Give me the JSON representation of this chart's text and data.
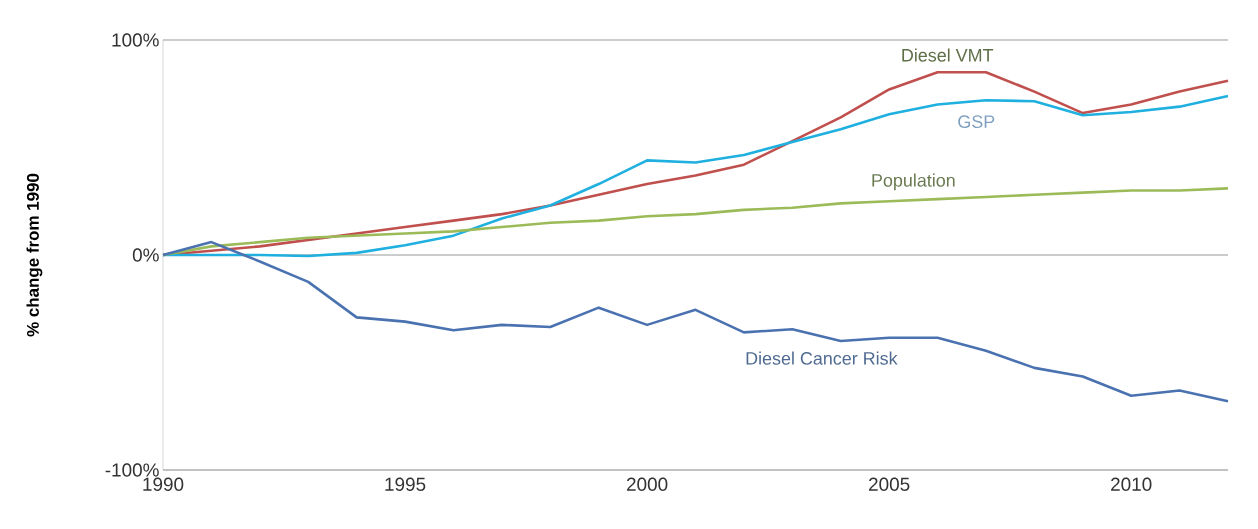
{
  "chart_data": {
    "type": "line",
    "ylabel": "% change from 1990",
    "x": [
      1990,
      1991,
      1992,
      1993,
      1994,
      1995,
      1996,
      1997,
      1998,
      1999,
      2000,
      2001,
      2002,
      2003,
      2004,
      2005,
      2006,
      2007,
      2008,
      2009,
      2010,
      2011,
      2012
    ],
    "series": [
      {
        "name": "Diesel VMT",
        "color": "#c0504d",
        "values": [
          0,
          2,
          4,
          7,
          10,
          13,
          16,
          19,
          23,
          28,
          33,
          37,
          42,
          53,
          64,
          77,
          85,
          85,
          76,
          66,
          70,
          76,
          81
        ]
      },
      {
        "name": "GSP",
        "color": "#1fb0e0",
        "values": [
          0,
          0,
          0,
          -0.5,
          1,
          4.5,
          9,
          17,
          23,
          33,
          44,
          43,
          46.5,
          52.5,
          58.5,
          65.5,
          70,
          72,
          71.5,
          65,
          66.5,
          69,
          74
        ]
      },
      {
        "name": "Population",
        "color": "#9bbb59",
        "values": [
          0,
          4,
          6,
          8,
          9,
          10,
          11,
          13,
          15,
          16,
          18,
          19,
          21,
          22,
          24,
          25,
          26,
          27,
          28,
          29,
          30,
          30,
          31
        ]
      },
      {
        "name": "Diesel Cancer Risk",
        "color": "#4a72b0",
        "values": [
          0,
          6,
          -3,
          -12.5,
          -29,
          -31,
          -35,
          -32.5,
          -33.5,
          -24.5,
          -32.5,
          -25.5,
          -36,
          -34.5,
          -40,
          -38.5,
          -38.5,
          -44.5,
          -52.5,
          -56.5,
          -65.5,
          -63,
          -68
        ]
      }
    ],
    "xlim": [
      1990,
      2012
    ],
    "ylim": [
      -100,
      100
    ],
    "xticks": [
      1990,
      1995,
      2000,
      2005,
      2010
    ],
    "yticks": [
      {
        "value": -100,
        "label": "-100%"
      },
      {
        "value": 0,
        "label": "0%"
      },
      {
        "value": 100,
        "label": "100%"
      }
    ],
    "grid": "y",
    "marker": "none",
    "line_style": "solid"
  }
}
